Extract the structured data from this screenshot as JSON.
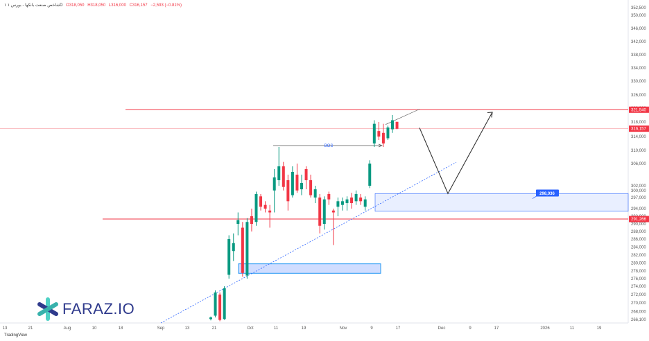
{
  "header": {
    "symbol": "۱ ‎شاخص صنعت بانکها - بورس ۱D",
    "open": "O318,050",
    "high": "H318,050",
    "low": "L316,000",
    "close": "C316,157",
    "change": "−2,593 (−0.81%)"
  },
  "brand": {
    "name": "FARAZ.IO",
    "footer": "TradingView"
  },
  "colors": {
    "up": "#089981",
    "down": "#f23645",
    "level": "#f23645",
    "zone": "#2962ff",
    "trend": "#2962ff",
    "path": "#333333"
  },
  "chart_data": {
    "type": "candlestick",
    "y_ticks": [
      266100,
      268000,
      270000,
      272000,
      274000,
      276000,
      278000,
      280000,
      282000,
      284000,
      286000,
      288000,
      290000,
      292000,
      294000,
      297000,
      300000,
      302000,
      306000,
      310000,
      314000,
      318000,
      322000,
      326000,
      330000,
      334000,
      338000,
      342000,
      346000,
      350000,
      352500
    ],
    "x_ticks": [
      "13",
      "21",
      "Aug",
      "10",
      "18",
      "Sep",
      "13",
      "21",
      "Oct",
      "11",
      "19",
      "Nov",
      "9",
      "17",
      "Dec",
      "9",
      "17",
      "2026",
      "11",
      "19"
    ],
    "ylim": [
      265500,
      353000
    ],
    "price_labels": [
      {
        "name": "resistance-level",
        "value": "321,540"
      },
      {
        "name": "last-price",
        "value": "316,157"
      },
      {
        "name": "support-level",
        "value": "291,266"
      },
      {
        "name": "zone-label",
        "value": "298,036"
      }
    ],
    "annotations": {
      "bos": "BOS"
    },
    "candles": [
      {
        "o": 266200,
        "h": 266800,
        "l": 265900,
        "c": 266600
      },
      {
        "o": 267000,
        "h": 273000,
        "l": 266600,
        "c": 272500
      },
      {
        "o": 272000,
        "h": 272500,
        "l": 265700,
        "c": 266000
      },
      {
        "o": 266200,
        "h": 274000,
        "l": 266000,
        "c": 273500
      },
      {
        "o": 277000,
        "h": 287000,
        "l": 276000,
        "c": 286000
      },
      {
        "o": 283000,
        "h": 287500,
        "l": 280500,
        "c": 285000
      },
      {
        "o": 290000,
        "h": 293000,
        "l": 287000,
        "c": 291000
      },
      {
        "o": 289000,
        "h": 290500,
        "l": 276500,
        "c": 277500
      },
      {
        "o": 276800,
        "h": 291500,
        "l": 276000,
        "c": 290500
      },
      {
        "o": 292000,
        "h": 294000,
        "l": 288000,
        "c": 290000
      },
      {
        "o": 290500,
        "h": 299500,
        "l": 289500,
        "c": 298500
      },
      {
        "o": 297500,
        "h": 298500,
        "l": 293500,
        "c": 294500
      },
      {
        "o": 295000,
        "h": 296000,
        "l": 293000,
        "c": 294000
      },
      {
        "o": 293500,
        "h": 295000,
        "l": 289000,
        "c": 293000
      },
      {
        "o": 300000,
        "h": 305000,
        "l": 293000,
        "c": 303500
      },
      {
        "o": 303000,
        "h": 311000,
        "l": 302000,
        "c": 305500
      },
      {
        "o": 305500,
        "h": 306500,
        "l": 300000,
        "c": 301500
      },
      {
        "o": 303000,
        "h": 304000,
        "l": 293500,
        "c": 296000
      },
      {
        "o": 298000,
        "h": 305500,
        "l": 297000,
        "c": 304500
      },
      {
        "o": 304000,
        "h": 306000,
        "l": 299000,
        "c": 300000
      },
      {
        "o": 300500,
        "h": 304000,
        "l": 298000,
        "c": 302500
      },
      {
        "o": 305000,
        "h": 305500,
        "l": 300500,
        "c": 303000
      },
      {
        "o": 303000,
        "h": 304000,
        "l": 297000,
        "c": 298000
      },
      {
        "o": 297000,
        "h": 302000,
        "l": 295500,
        "c": 300500
      },
      {
        "o": 297000,
        "h": 298500,
        "l": 287500,
        "c": 289500
      },
      {
        "o": 290000,
        "h": 297500,
        "l": 288500,
        "c": 296500
      },
      {
        "o": 298500,
        "h": 299500,
        "l": 295000,
        "c": 296500
      },
      {
        "o": 293500,
        "h": 294000,
        "l": 284500,
        "c": 293000
      },
      {
        "o": 294500,
        "h": 297000,
        "l": 292000,
        "c": 296000
      },
      {
        "o": 295000,
        "h": 297000,
        "l": 293500,
        "c": 296000
      },
      {
        "o": 295500,
        "h": 297500,
        "l": 293500,
        "c": 296500
      },
      {
        "o": 297000,
        "h": 299000,
        "l": 294000,
        "c": 295500
      },
      {
        "o": 296000,
        "h": 300000,
        "l": 295000,
        "c": 298500
      },
      {
        "o": 297000,
        "h": 298500,
        "l": 295000,
        "c": 296000
      },
      {
        "o": 294500,
        "h": 297500,
        "l": 293500,
        "c": 296500
      },
      {
        "o": 302000,
        "h": 307000,
        "l": 301000,
        "c": 306000
      },
      {
        "o": 312000,
        "h": 318500,
        "l": 311000,
        "c": 317500
      },
      {
        "o": 315500,
        "h": 318000,
        "l": 313000,
        "c": 314000
      },
      {
        "o": 315000,
        "h": 317500,
        "l": 311000,
        "c": 312000
      },
      {
        "o": 313500,
        "h": 317000,
        "l": 313000,
        "c": 316500
      },
      {
        "o": 316000,
        "h": 320000,
        "l": 315000,
        "c": 318500
      },
      {
        "o": 318050,
        "h": 318050,
        "l": 316000,
        "c": 316157
      }
    ]
  }
}
